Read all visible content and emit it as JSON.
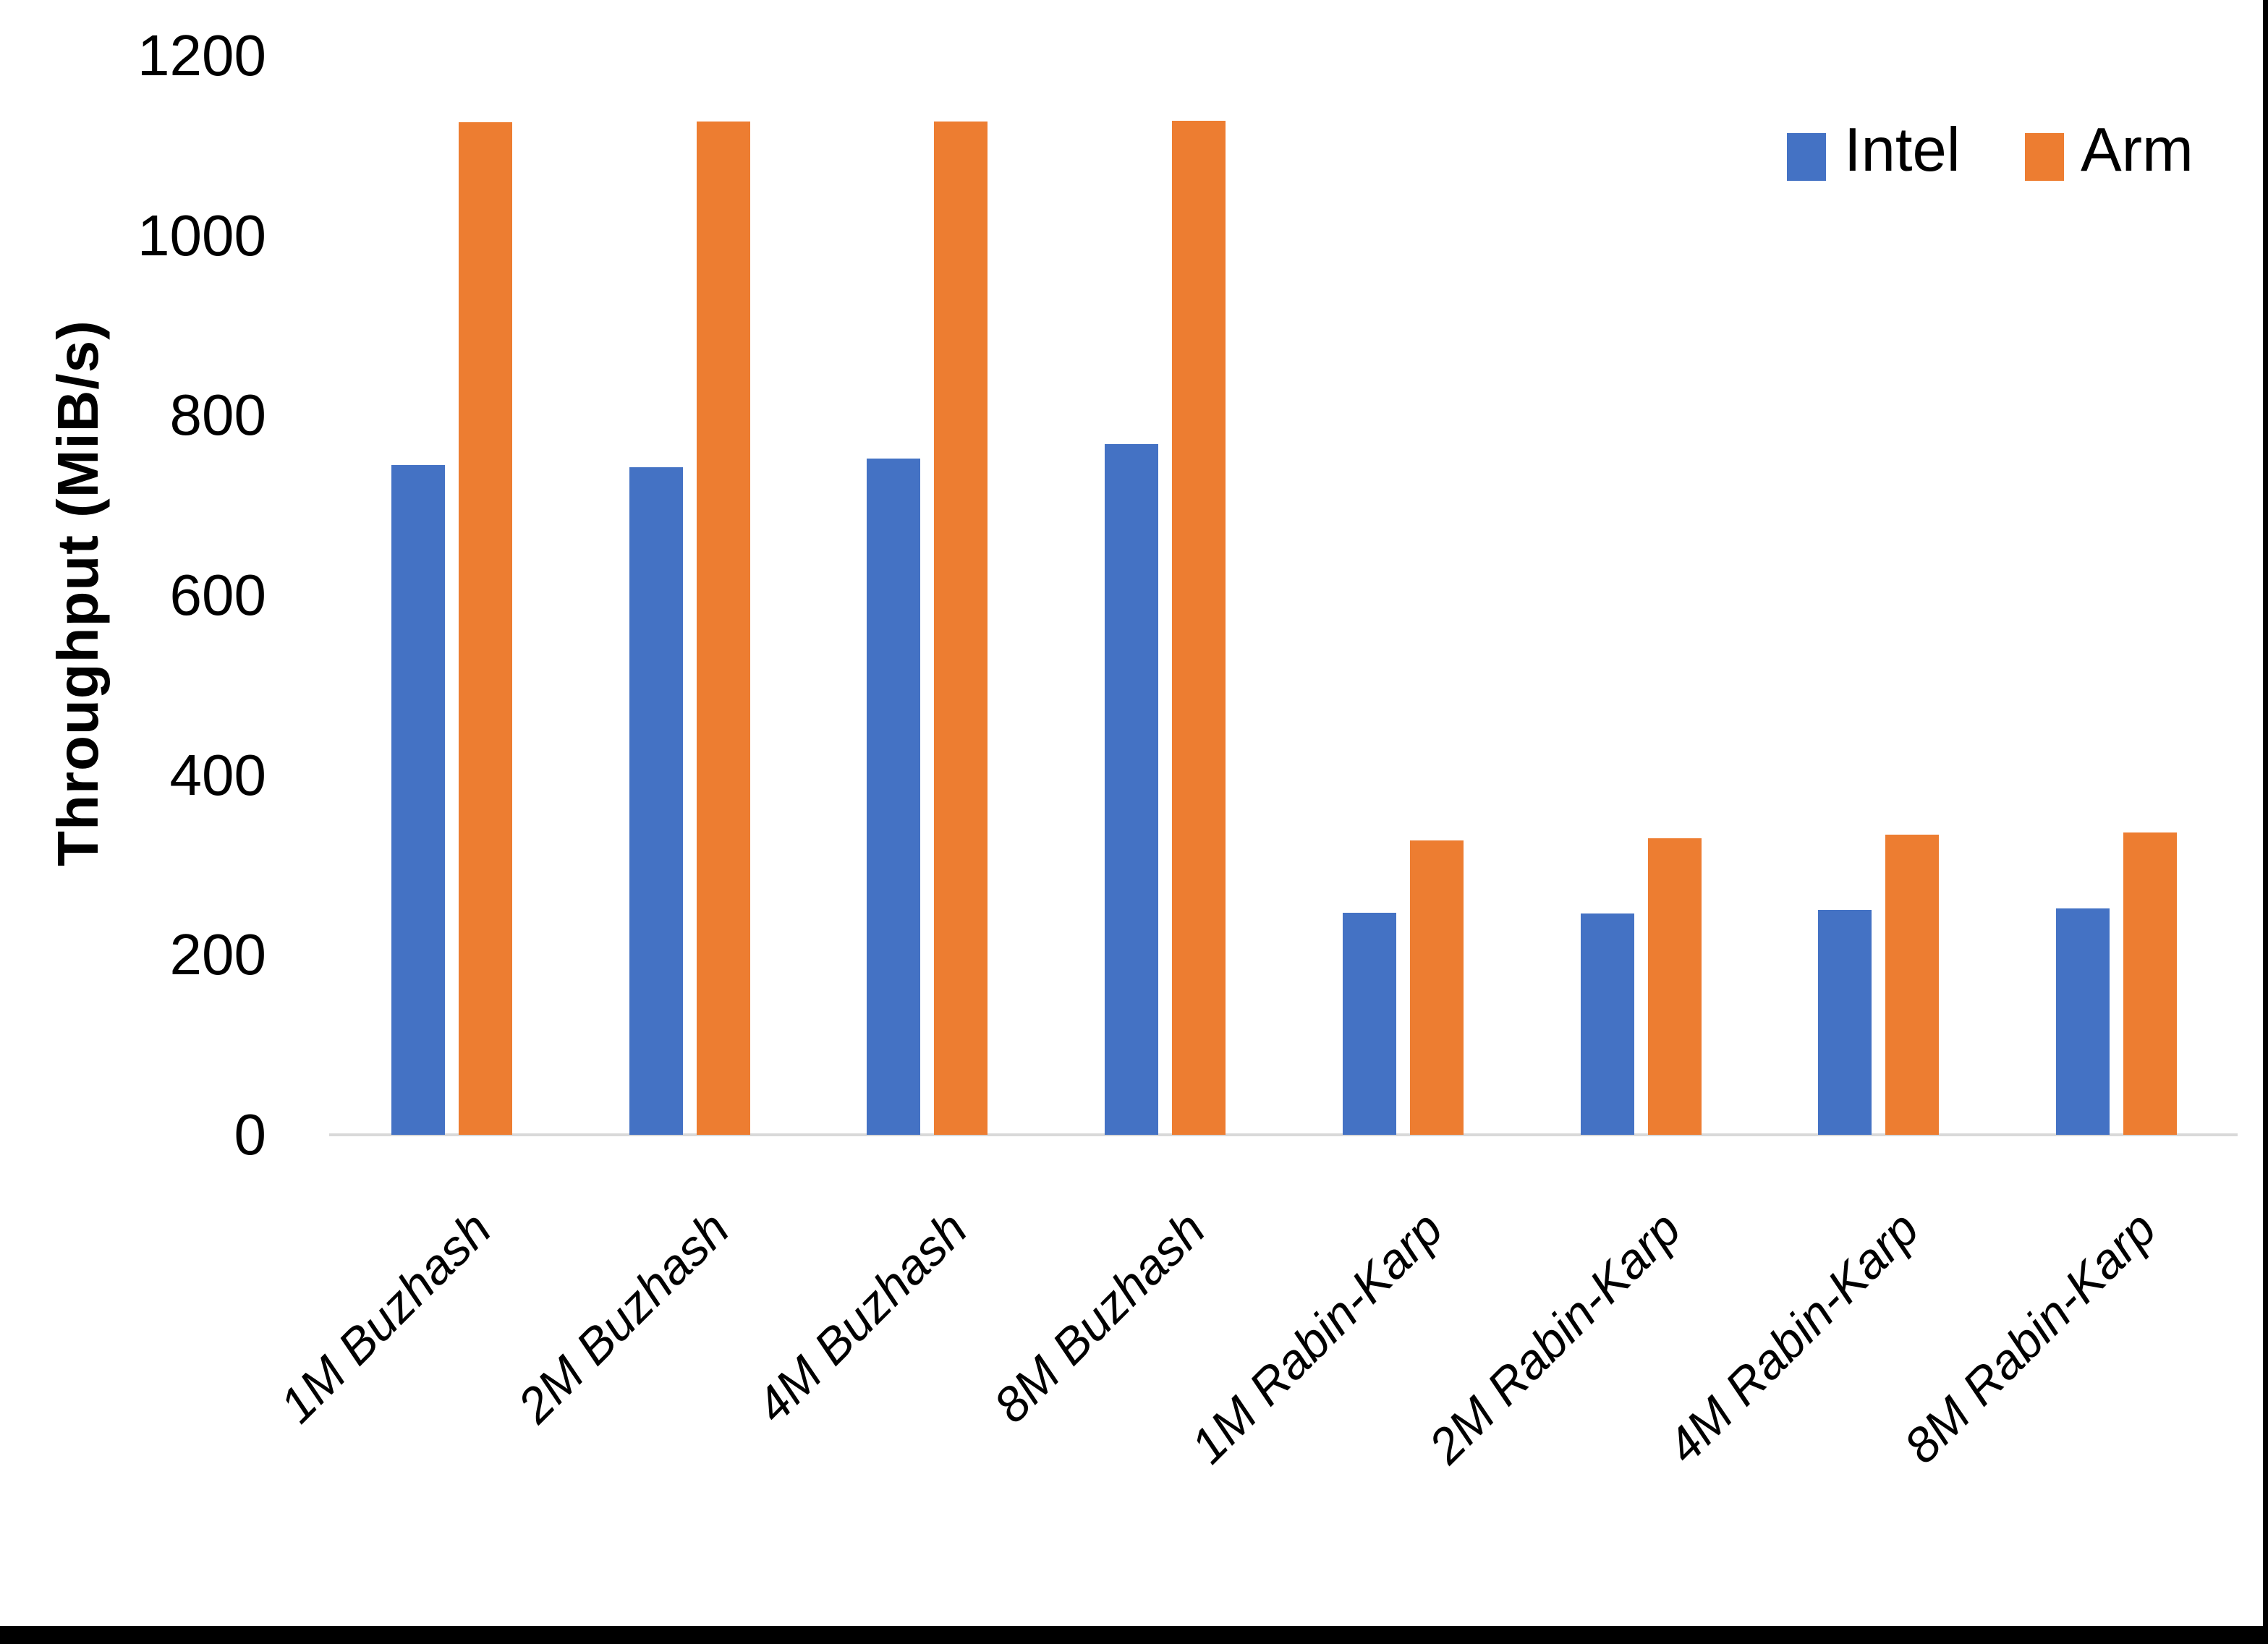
{
  "chart_data": {
    "type": "bar",
    "title": "",
    "xlabel": "",
    "ylabel": "Throughput (MiB/s)",
    "categories": [
      "1M Buzhash",
      "2M Buzhash",
      "4M Buzhash",
      "8M Buzhash",
      "1M Rabin-Karp",
      "2M Rabin-Karp",
      "4M Rabin-Karp",
      "8M Rabin-Karp"
    ],
    "series": [
      {
        "name": "Intel",
        "color": "#4472C4",
        "values": [
          745,
          742,
          752,
          768,
          247,
          246,
          250,
          252
        ]
      },
      {
        "name": "Arm",
        "color": "#ED7D31",
        "values": [
          1126,
          1127,
          1127,
          1128,
          327,
          330,
          334,
          336
        ]
      }
    ],
    "ylim": [
      0,
      1200
    ],
    "yticks": [
      0,
      200,
      400,
      600,
      800,
      1000,
      1200
    ],
    "grid": false,
    "legend_position": "top-right",
    "axis_line_color": "#D9D9D9",
    "tick_label_color": "#000000"
  },
  "window": {
    "right_edge_color": "#000000",
    "bottom_edge_color": "#000000",
    "background": "#FFFFFF"
  }
}
